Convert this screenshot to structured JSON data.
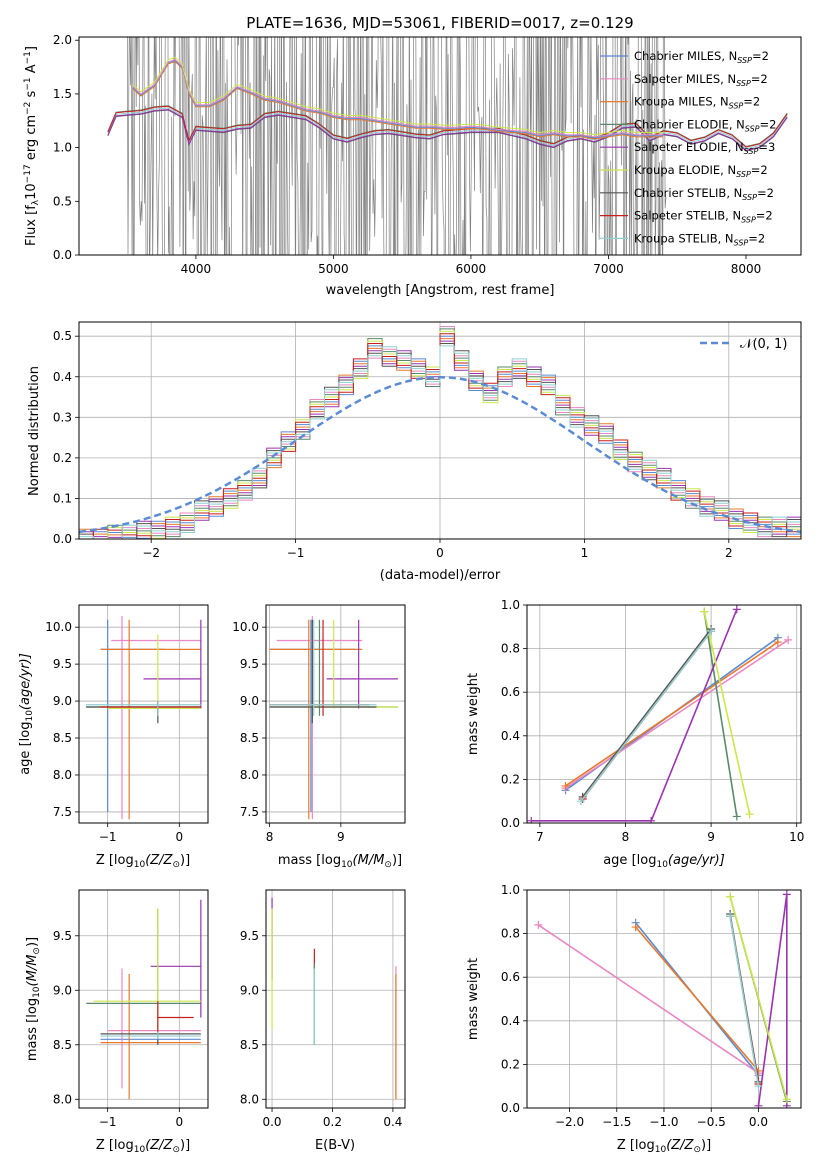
{
  "figure": {
    "title": "PLATE=1636, MJD=53061, FIBERID=0017, z=0.129"
  },
  "series": [
    {
      "name": "Chabrier MILES",
      "nssp": "2",
      "color": "#5b8bd4"
    },
    {
      "name": "Salpeter MILES",
      "nssp": "2",
      "color": "#e887c3"
    },
    {
      "name": "Kroupa MILES",
      "nssp": "2",
      "color": "#e8792c"
    },
    {
      "name": "Chabrier ELODIE",
      "nssp": "2",
      "color": "#5a8a6a"
    },
    {
      "name": "Salpeter ELODIE",
      "nssp": "3",
      "color": "#9a33b0"
    },
    {
      "name": "Kroupa ELODIE",
      "nssp": "2",
      "color": "#cbe84a"
    },
    {
      "name": "Chabrier STELIB",
      "nssp": "2",
      "color": "#555555"
    },
    {
      "name": "Salpeter STELIB",
      "nssp": "2",
      "color": "#c81e1e"
    },
    {
      "name": "Kroupa STELIB",
      "nssp": "2",
      "color": "#8fd0d0"
    }
  ],
  "chart_data": [
    {
      "id": "spectrum",
      "type": "line",
      "xlabel": "wavelength [Angstrom, rest frame]",
      "ylabel_prefix": "Flux [f",
      "ylabel_sub": "λ",
      "ylabel_mid": "10",
      "ylabel_exp1": "−17",
      "ylabel_tail": " erg cm",
      "ylabel_exp2": "−2",
      "ylabel_s": " s",
      "ylabel_exp3": "−1",
      "ylabel_A": " A",
      "ylabel_exp4": "−1",
      "ylabel_end": "]",
      "xlim": [
        3150,
        8400
      ],
      "ylim": [
        0,
        2.03
      ],
      "xticks": [
        4000,
        5000,
        6000,
        7000,
        8000
      ],
      "yticks": [
        0.0,
        0.5,
        1.0,
        1.5,
        2.0
      ],
      "ytick_labels": [
        "0.0",
        "0.5",
        "1.0",
        "1.5",
        "2.0"
      ],
      "data_range": [
        3500,
        7420
      ],
      "data_color": "#808080",
      "legend": "top-right",
      "model_continuum": {
        "x": [
          3360,
          3420,
          3500,
          3600,
          3700,
          3800,
          3900,
          3950,
          4000,
          4100,
          4200,
          4300,
          4400,
          4500,
          4600,
          4700,
          4800,
          4900,
          5000,
          5100,
          5200,
          5300,
          5400,
          5500,
          5600,
          5700,
          5800,
          5900,
          6000,
          6100,
          6200,
          6300,
          6400,
          6500,
          6600,
          6700,
          6800,
          6900,
          7000,
          7100,
          7200,
          7300,
          7400,
          7500,
          7600,
          7700,
          7800,
          7900,
          8000,
          8100,
          8200,
          8300
        ],
        "y": [
          1.13,
          1.31,
          1.32,
          1.33,
          1.36,
          1.37,
          1.3,
          1.05,
          1.18,
          1.17,
          1.16,
          1.19,
          1.2,
          1.3,
          1.32,
          1.3,
          1.28,
          1.2,
          1.1,
          1.07,
          1.11,
          1.14,
          1.15,
          1.13,
          1.11,
          1.1,
          1.14,
          1.15,
          1.16,
          1.16,
          1.16,
          1.13,
          1.1,
          1.05,
          1.02,
          1.08,
          1.1,
          1.07,
          1.12,
          1.2,
          1.21,
          1.08,
          1.14,
          1.12,
          1.05,
          1.08,
          1.15,
          1.1,
          0.99,
          1.02,
          1.12,
          1.3
        ]
      },
      "miles_upper": {
        "x": [
          3540,
          3600,
          3700,
          3800,
          3850,
          3900,
          3950,
          4000,
          4100,
          4200,
          4300,
          4400,
          4500,
          4600,
          4700,
          4800,
          4900,
          5000,
          5100,
          5200,
          5300,
          5400,
          5500,
          5600,
          5700,
          5800,
          5900,
          6000,
          6100,
          6200,
          6300,
          6400,
          6500,
          6600,
          6700,
          6800,
          6900,
          7000,
          7100,
          7200,
          7300,
          7400
        ],
        "y": [
          1.55,
          1.48,
          1.57,
          1.78,
          1.8,
          1.74,
          1.5,
          1.38,
          1.38,
          1.44,
          1.55,
          1.5,
          1.44,
          1.42,
          1.38,
          1.34,
          1.32,
          1.28,
          1.26,
          1.26,
          1.24,
          1.22,
          1.2,
          1.18,
          1.18,
          1.17,
          1.17,
          1.18,
          1.17,
          1.15,
          1.14,
          1.13,
          1.1,
          1.12,
          1.1,
          1.1,
          1.08,
          1.1,
          1.12,
          1.1,
          1.1,
          1.1
        ]
      }
    },
    {
      "id": "residuals",
      "type": "histogram",
      "xlabel": "(data-model)/error",
      "ylabel": "Normed distribution",
      "xlim": [
        -2.5,
        2.5
      ],
      "ylim": [
        0,
        0.535
      ],
      "xticks": [
        -2,
        -1,
        0,
        1,
        2
      ],
      "xtick_labels": [
        "−2",
        "−1",
        "0",
        "1",
        "2"
      ],
      "yticks": [
        0.0,
        0.1,
        0.2,
        0.3,
        0.4,
        0.5
      ],
      "ytick_labels": [
        "0.0",
        "0.1",
        "0.2",
        "0.3",
        "0.4",
        "0.5"
      ],
      "grid": true,
      "legend_label": "𝒩(0, 1)",
      "legend_placement": "top-right",
      "gauss_color": "#5b8bd4",
      "bin_width": 0.1,
      "bin_start": -2.5,
      "hist": [
        0.0,
        0.0,
        0.01,
        0.01,
        0.02,
        0.02,
        0.03,
        0.04,
        0.07,
        0.08,
        0.1,
        0.12,
        0.15,
        0.2,
        0.24,
        0.27,
        0.32,
        0.35,
        0.38,
        0.42,
        0.47,
        0.45,
        0.44,
        0.42,
        0.4,
        0.5,
        0.44,
        0.39,
        0.36,
        0.4,
        0.42,
        0.4,
        0.38,
        0.33,
        0.3,
        0.28,
        0.26,
        0.22,
        0.19,
        0.17,
        0.15,
        0.12,
        0.1,
        0.08,
        0.07,
        0.05,
        0.04,
        0.03,
        0.03,
        0.03
      ]
    },
    {
      "id": "z-age",
      "type": "errorbar",
      "xlabel": "Z [log",
      "xlabel_sub": "10",
      "xlabel_tail": "(Z/Z",
      "xlabel_sun": "⊙",
      "xlabel_end": ")]",
      "ylabel": "age  [log",
      "ylabel_sub": "10",
      "ylabel_tail": "(age/yr)]",
      "xlim": [
        -1.4,
        0.4
      ],
      "ylim": [
        7.35,
        10.3
      ],
      "xticks": [
        -1,
        0
      ],
      "xtick_labels": [
        "−1",
        "0"
      ],
      "yticks": [
        7.5,
        8.0,
        8.5,
        9.0,
        9.5,
        10.0
      ],
      "ytick_labels": [
        "7.5",
        "8.0",
        "8.5",
        "9.0",
        "9.5",
        "10.0"
      ],
      "grid": true,
      "points": [
        {
          "s": 0,
          "x": -1.0,
          "y": 9.7,
          "xl": -1.1,
          "xh": -0.2,
          "yl": 7.5,
          "yh": 10.1
        },
        {
          "s": 1,
          "x": -0.8,
          "y": 9.82,
          "xl": -0.95,
          "xh": 0.3,
          "yl": 7.4,
          "yh": 10.15
        },
        {
          "s": 2,
          "x": -0.7,
          "y": 9.7,
          "xl": -1.1,
          "xh": 0.3,
          "yl": 7.4,
          "yh": 10.1
        },
        {
          "s": 3,
          "x": -0.3,
          "y": 8.92,
          "xl": -1.3,
          "xh": 0.3,
          "yl": 8.8,
          "yh": 9.0
        },
        {
          "s": 4,
          "x": 0.3,
          "y": 9.3,
          "xl": -0.5,
          "xh": 0.3,
          "yl": 8.9,
          "yh": 10.1
        },
        {
          "s": 5,
          "x": -0.3,
          "y": 8.9,
          "xl": -1.0,
          "xh": 0.3,
          "yl": 8.9,
          "yh": 9.9
        },
        {
          "s": 6,
          "x": -0.3,
          "y": 8.92,
          "xl": -1.3,
          "xh": 0.3,
          "yl": 8.7,
          "yh": 9.0
        },
        {
          "s": 7,
          "x": -0.3,
          "y": 8.92,
          "xl": -1.1,
          "xh": 0.3,
          "yl": 8.8,
          "yh": 9.0
        },
        {
          "s": 8,
          "x": -0.3,
          "y": 8.95,
          "xl": -1.3,
          "xh": 0.3,
          "yl": 8.8,
          "yh": 9.0
        }
      ]
    },
    {
      "id": "mass-age",
      "type": "errorbar",
      "xlabel": "mass [log",
      "xlabel_sub": "10",
      "xlabel_tail": "(M/M",
      "xlabel_sun": "⊙",
      "xlabel_end": ")]",
      "xlim": [
        7.95,
        9.9
      ],
      "ylim": [
        7.35,
        10.3
      ],
      "xticks": [
        8,
        9
      ],
      "xtick_labels": [
        "8",
        "9"
      ],
      "yticks": [
        7.5,
        8.0,
        8.5,
        9.0,
        9.5,
        10.0
      ],
      "ytick_labels": [
        "7.5",
        "8.0",
        "8.5",
        "9.0",
        "9.5",
        "10.0"
      ],
      "grid": true,
      "points": [
        {
          "s": 0,
          "x": 8.58,
          "y": 9.7,
          "xl": 8.0,
          "xh": 9.2,
          "yl": 7.5,
          "yh": 10.1
        },
        {
          "s": 1,
          "x": 8.6,
          "y": 9.82,
          "xl": 8.1,
          "xh": 9.3,
          "yl": 7.4,
          "yh": 10.15
        },
        {
          "s": 2,
          "x": 8.55,
          "y": 9.7,
          "xl": 8.0,
          "xh": 9.3,
          "yl": 7.4,
          "yh": 10.1
        },
        {
          "s": 3,
          "x": 8.7,
          "y": 8.92,
          "xl": 8.0,
          "xh": 9.8,
          "yl": 8.8,
          "yh": 10.1
        },
        {
          "s": 4,
          "x": 9.25,
          "y": 9.3,
          "xl": 8.8,
          "xh": 9.8,
          "yl": 8.9,
          "yh": 10.1
        },
        {
          "s": 5,
          "x": 8.9,
          "y": 8.92,
          "xl": 8.5,
          "xh": 9.8,
          "yl": 8.9,
          "yh": 10.1
        },
        {
          "s": 6,
          "x": 8.6,
          "y": 8.92,
          "xl": 8.0,
          "xh": 9.5,
          "yl": 8.7,
          "yh": 10.1
        },
        {
          "s": 7,
          "x": 8.75,
          "y": 8.95,
          "xl": 8.0,
          "xh": 9.4,
          "yl": 8.8,
          "yh": 10.1
        },
        {
          "s": 8,
          "x": 8.62,
          "y": 8.95,
          "xl": 8.0,
          "xh": 9.5,
          "yl": 8.8,
          "yh": 10.1
        }
      ]
    },
    {
      "id": "age-weight",
      "type": "line",
      "xlabel": "age  [log",
      "xlabel_sub": "10",
      "xlabel_tail": "(age/yr)]",
      "ylabel": "mass weight",
      "xlim": [
        6.85,
        10.05
      ],
      "ylim": [
        0,
        1.0
      ],
      "xticks": [
        7,
        8,
        9,
        10
      ],
      "xtick_labels": [
        "7",
        "8",
        "9",
        "10"
      ],
      "yticks": [
        0.0,
        0.2,
        0.4,
        0.6,
        0.8,
        1.0
      ],
      "ytick_labels": [
        "0.0",
        "0.2",
        "0.4",
        "0.6",
        "0.8",
        "1.0"
      ],
      "grid": true,
      "lines": [
        {
          "s": 0,
          "x": [
            7.3,
            9.78
          ],
          "y": [
            0.15,
            0.85
          ]
        },
        {
          "s": 1,
          "x": [
            7.3,
            9.9
          ],
          "y": [
            0.16,
            0.84
          ]
        },
        {
          "s": 2,
          "x": [
            7.3,
            9.78
          ],
          "y": [
            0.17,
            0.83
          ]
        },
        {
          "s": 3,
          "x": [
            8.92,
            9.3
          ],
          "y": [
            0.97,
            0.03
          ]
        },
        {
          "s": 4,
          "x": [
            6.9,
            8.3,
            9.3
          ],
          "y": [
            0.01,
            0.01,
            0.98
          ]
        },
        {
          "s": 5,
          "x": [
            8.92,
            9.45
          ],
          "y": [
            0.97,
            0.04
          ]
        },
        {
          "s": 6,
          "x": [
            7.5,
            9.0
          ],
          "y": [
            0.12,
            0.89
          ]
        },
        {
          "s": 7,
          "x": [
            7.5,
            9.0
          ],
          "y": [
            0.11,
            0.88
          ]
        },
        {
          "s": 8,
          "x": [
            7.48,
            9.0
          ],
          "y": [
            0.1,
            0.88
          ]
        }
      ]
    },
    {
      "id": "z-mass",
      "type": "errorbar",
      "xlabel": "Z [log",
      "xlabel_sub": "10",
      "xlabel_tail": "(Z/Z",
      "xlabel_sun": "⊙",
      "xlabel_end": ")]",
      "ylabel": "mass [log",
      "ylabel_sub": "10",
      "ylabel_tail": "(M/M",
      "ylabel_sun": "⊙",
      "ylabel_end": ")]",
      "xlim": [
        -1.4,
        0.4
      ],
      "ylim": [
        7.92,
        9.92
      ],
      "xticks": [
        -1,
        0
      ],
      "xtick_labels": [
        "−1",
        "0"
      ],
      "yticks": [
        8.0,
        8.5,
        9.0,
        9.5
      ],
      "ytick_labels": [
        "8.0",
        "8.5",
        "9.0",
        "9.5"
      ],
      "grid": true,
      "points": [
        {
          "s": 0,
          "x": -0.3,
          "y": 8.55,
          "xl": -1.1,
          "xh": 0.3,
          "yl": 8.5,
          "yh": 8.6
        },
        {
          "s": 1,
          "x": -0.8,
          "y": 8.63,
          "xl": -1.0,
          "xh": 0.3,
          "yl": 8.1,
          "yh": 9.2
        },
        {
          "s": 2,
          "x": -0.7,
          "y": 8.52,
          "xl": -1.1,
          "xh": 0.3,
          "yl": 8.0,
          "yh": 9.15
        },
        {
          "s": 3,
          "x": -0.3,
          "y": 8.88,
          "xl": -1.3,
          "xh": 0.3,
          "yl": 8.6,
          "yh": 9.75
        },
        {
          "s": 4,
          "x": 0.3,
          "y": 9.22,
          "xl": -0.4,
          "xh": 0.3,
          "yl": 8.75,
          "yh": 9.83
        },
        {
          "s": 5,
          "x": -0.3,
          "y": 8.9,
          "xl": -1.2,
          "xh": 0.3,
          "yl": 8.6,
          "yh": 9.75
        },
        {
          "s": 6,
          "x": -0.3,
          "y": 8.6,
          "xl": -1.1,
          "xh": 0.3,
          "yl": 8.5,
          "yh": 8.6
        },
        {
          "s": 7,
          "x": -0.3,
          "y": 8.75,
          "xl": -0.3,
          "xh": 0.2,
          "yl": 8.6,
          "yh": 8.9
        },
        {
          "s": 8,
          "x": -0.3,
          "y": 8.58,
          "xl": -1.1,
          "xh": 0.3,
          "yl": 8.55,
          "yh": 8.62
        }
      ]
    },
    {
      "id": "ebv-mass",
      "type": "errorbar",
      "xlabel": "E(B-V)",
      "xlim": [
        -0.02,
        0.44
      ],
      "ylim": [
        7.92,
        9.92
      ],
      "xticks": [
        0.0,
        0.2,
        0.4
      ],
      "xtick_labels": [
        "0.0",
        "0.2",
        "0.4"
      ],
      "yticks": [
        8.0,
        8.5,
        9.0,
        9.5
      ],
      "ytick_labels": [
        "8.0",
        "8.5",
        "9.0",
        "9.5"
      ],
      "grid": true,
      "points": [
        {
          "s": 4,
          "x": 0.0,
          "y": 9.5,
          "yl": 9.1,
          "yh": 9.85
        },
        {
          "s": 5,
          "x": 0.0,
          "y": 9.2,
          "yl": 8.65,
          "yh": 9.75
        },
        {
          "s": 7,
          "x": 0.14,
          "y": 9.3,
          "yl": 9.2,
          "yh": 9.38
        },
        {
          "s": 3,
          "x": 0.14,
          "y": 8.85,
          "yl": 8.5,
          "yh": 9.25
        },
        {
          "s": 8,
          "x": 0.14,
          "y": 8.85,
          "yl": 8.5,
          "yh": 9.2
        },
        {
          "s": 1,
          "x": 0.41,
          "y": 8.6,
          "yl": 8.0,
          "yh": 9.22
        },
        {
          "s": 2,
          "x": 0.41,
          "y": 8.6,
          "yl": 8.0,
          "yh": 9.15
        }
      ]
    },
    {
      "id": "z-weight",
      "type": "line",
      "xlabel": "Z [log",
      "xlabel_sub": "10",
      "xlabel_tail": "(Z/Z",
      "xlabel_sun": "⊙",
      "xlabel_end": ")]",
      "ylabel": "mass weight",
      "xlim": [
        -2.45,
        0.45
      ],
      "ylim": [
        0,
        1.0
      ],
      "xticks": [
        -2.0,
        -1.5,
        -1.0,
        -0.5,
        0.0
      ],
      "xtick_labels": [
        "−2.0",
        "−1.5",
        "−1.0",
        "−0.5",
        "0.0"
      ],
      "yticks": [
        0.0,
        0.2,
        0.4,
        0.6,
        0.8,
        1.0
      ],
      "ytick_labels": [
        "0.0",
        "0.2",
        "0.4",
        "0.6",
        "0.8",
        "1.0"
      ],
      "grid": true,
      "lines": [
        {
          "s": 0,
          "x": [
            -1.3,
            0.0
          ],
          "y": [
            0.85,
            0.15
          ]
        },
        {
          "s": 1,
          "x": [
            -2.33,
            0.0
          ],
          "y": [
            0.84,
            0.16
          ]
        },
        {
          "s": 2,
          "x": [
            -1.3,
            0.0
          ],
          "y": [
            0.83,
            0.17
          ]
        },
        {
          "s": 3,
          "x": [
            -0.3,
            0.3
          ],
          "y": [
            0.97,
            0.03
          ]
        },
        {
          "s": 4,
          "x": [
            0.0,
            0.3,
            0.3
          ],
          "y": [
            0.01,
            0.98,
            0.01
          ]
        },
        {
          "s": 5,
          "x": [
            -0.3,
            0.3
          ],
          "y": [
            0.97,
            0.04
          ]
        },
        {
          "s": 6,
          "x": [
            -0.3,
            0.0
          ],
          "y": [
            0.89,
            0.12
          ]
        },
        {
          "s": 7,
          "x": [
            -0.3,
            0.0
          ],
          "y": [
            0.88,
            0.11
          ]
        },
        {
          "s": 8,
          "x": [
            -0.3,
            0.0
          ],
          "y": [
            0.88,
            0.1
          ]
        }
      ]
    }
  ]
}
